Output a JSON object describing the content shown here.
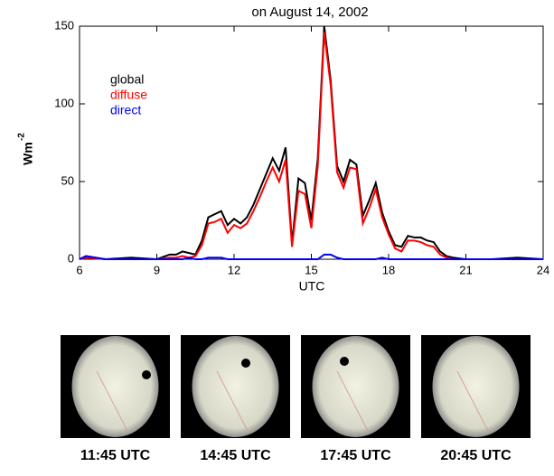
{
  "chart_data": {
    "type": "line",
    "title": "on August 14, 2002",
    "x_label": "UTC",
    "y_label": "Wm",
    "y_label_superscript": "-2",
    "x": [
      6,
      6.25,
      7,
      8,
      9,
      9.5,
      9.75,
      10,
      10.25,
      10.5,
      10.75,
      11,
      11.25,
      11.5,
      11.75,
      12,
      12.25,
      12.5,
      12.75,
      13,
      13.25,
      13.5,
      13.75,
      14,
      14.25,
      14.5,
      14.75,
      15,
      15.25,
      15.5,
      15.75,
      16,
      16.25,
      16.5,
      16.75,
      17,
      17.25,
      17.5,
      17.75,
      18,
      18.25,
      18.5,
      18.75,
      19,
      19.25,
      19.5,
      19.75,
      20,
      20.25,
      20.5,
      21,
      22,
      23,
      24
    ],
    "series": [
      {
        "name": "global",
        "color": "#000000",
        "values": [
          0,
          2,
          0,
          1,
          0,
          3,
          3,
          5,
          4,
          3,
          12,
          27,
          29,
          31,
          22,
          26,
          23,
          27,
          35,
          45,
          55,
          65,
          57,
          72,
          10,
          52,
          49,
          25,
          65,
          150,
          115,
          60,
          50,
          64,
          61,
          28,
          38,
          49,
          30,
          18,
          9,
          8,
          15,
          14,
          14,
          12,
          11,
          5,
          2,
          1,
          0,
          0,
          1,
          0
        ]
      },
      {
        "name": "diffuse",
        "color": "#ff0000",
        "values": [
          0,
          1,
          0,
          0,
          0,
          1,
          1,
          2,
          1,
          2,
          9,
          23,
          24,
          26,
          17,
          22,
          20,
          23,
          31,
          40,
          50,
          59,
          50,
          64,
          8,
          44,
          42,
          20,
          60,
          146,
          112,
          56,
          46,
          59,
          58,
          23,
          33,
          45,
          27,
          16,
          7,
          5,
          12,
          12,
          11,
          9,
          8,
          3,
          1,
          0,
          0,
          0,
          0,
          0
        ]
      },
      {
        "name": "direct",
        "color": "#0000ff",
        "values": [
          0,
          2,
          0,
          0,
          0,
          0,
          0,
          0,
          1,
          0,
          0,
          1,
          1,
          1,
          0,
          0,
          0,
          0,
          0,
          0,
          0,
          0,
          0,
          0,
          0,
          0,
          0,
          0,
          0,
          3,
          3,
          1,
          0,
          0,
          0,
          0,
          0,
          0,
          1,
          0,
          0,
          0,
          0,
          0,
          0,
          0,
          0,
          0,
          0,
          0,
          0,
          0,
          0,
          0
        ]
      }
    ],
    "xlim": [
      6,
      24
    ],
    "xticks": [
      6,
      9,
      12,
      15,
      18,
      21,
      24
    ],
    "ylim": [
      0,
      150
    ],
    "yticks": [
      0,
      50,
      100,
      150
    ],
    "legend": "upper left",
    "grid": false
  },
  "images": [
    {
      "caption": "11:45 UTC"
    },
    {
      "caption": "14:45 UTC"
    },
    {
      "caption": "17:45 UTC"
    },
    {
      "caption": "20:45 UTC"
    }
  ]
}
